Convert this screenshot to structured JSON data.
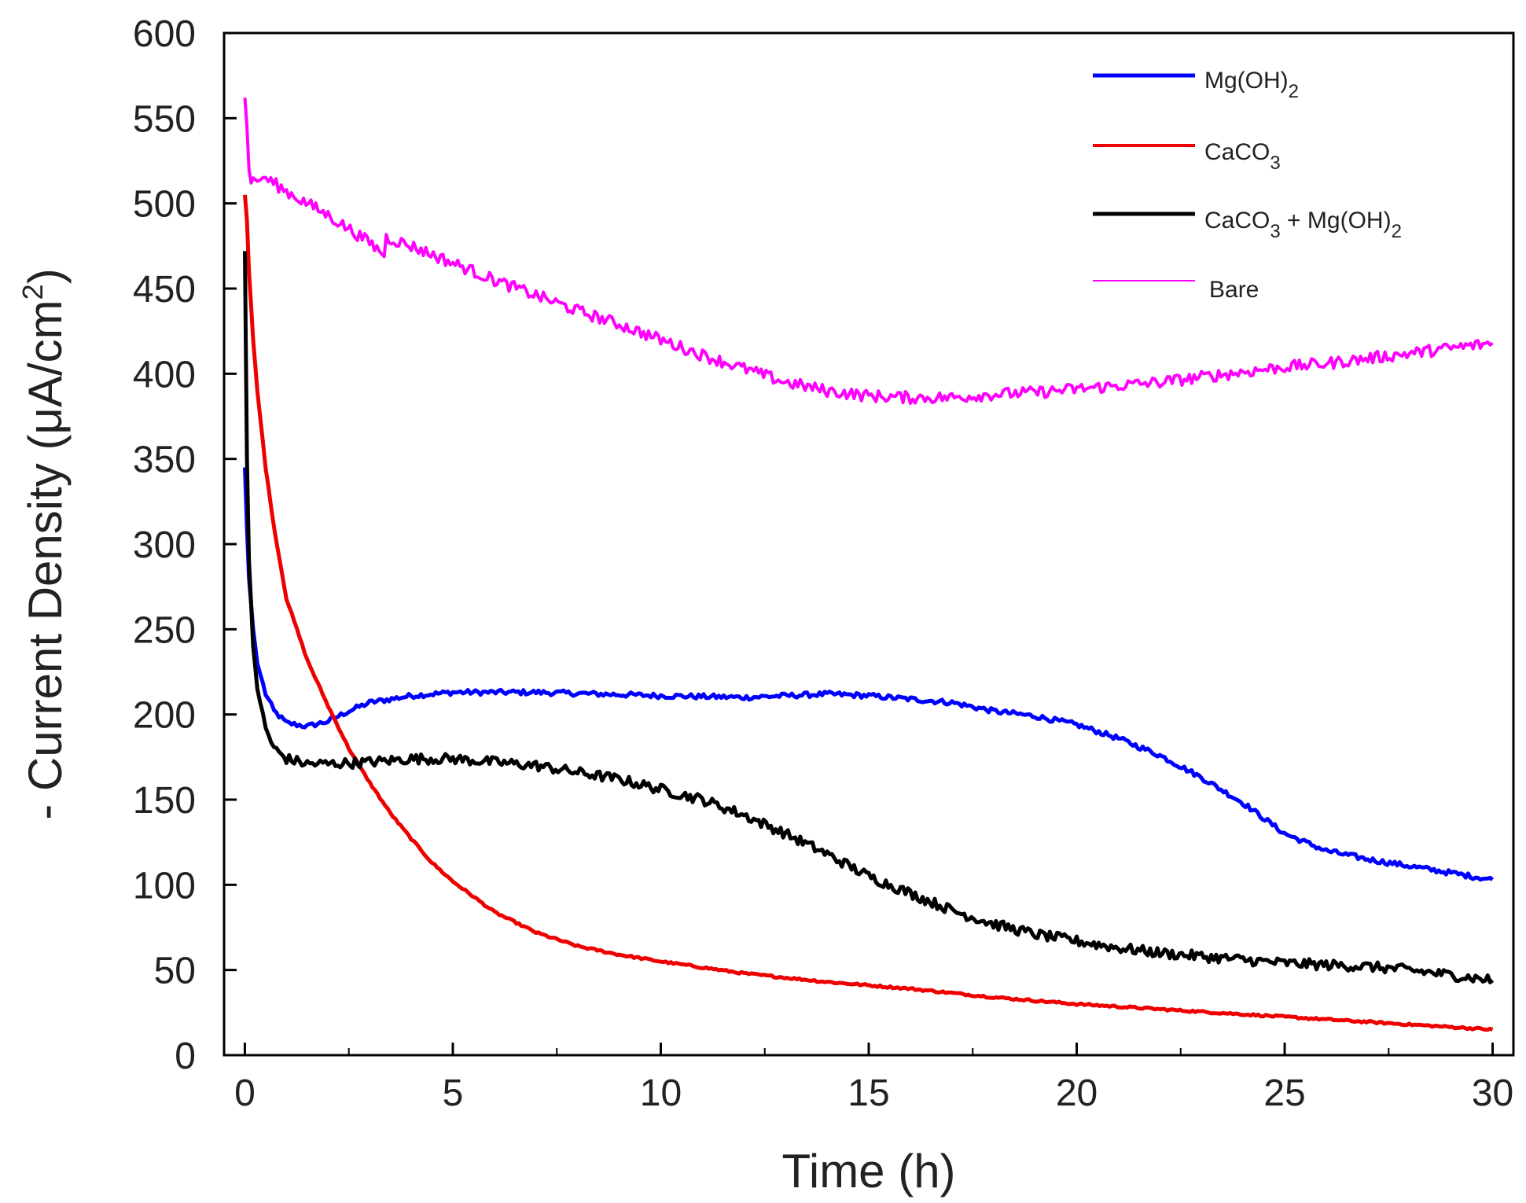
{
  "chart_data": {
    "type": "line",
    "title": "",
    "xlabel": "Time (h)",
    "ylabel_main": "- Current Density (μA/cm",
    "ylabel_sup": "2",
    "ylabel_close": ")",
    "xlim": [
      -0.5,
      30.5
    ],
    "ylim": [
      0,
      600
    ],
    "xticks": [
      0,
      5,
      10,
      15,
      20,
      25,
      30
    ],
    "yticks": [
      0,
      50,
      100,
      150,
      200,
      250,
      300,
      350,
      400,
      450,
      500,
      550,
      600
    ],
    "grid": false,
    "legend_position": "top-right",
    "series": [
      {
        "name": "Mg(OH)",
        "subscript": "2",
        "color": "#0000ff",
        "noise": 1.5,
        "x": [
          0,
          0.05,
          0.1,
          0.2,
          0.3,
          0.5,
          0.7,
          1.0,
          1.5,
          2.0,
          2.5,
          3.0,
          4.0,
          5.0,
          7.0,
          10.0,
          12.0,
          14.0,
          15.0,
          16.0,
          17.0,
          18.0,
          19.0,
          20.0,
          21.0,
          22.0,
          23.0,
          24.0,
          25.0,
          26.0,
          27.0,
          28.0,
          29.0,
          30.0
        ],
        "y": [
          345,
          310,
          280,
          250,
          230,
          212,
          202,
          195,
          193,
          196,
          202,
          207,
          211,
          213,
          213,
          211,
          210,
          212,
          211,
          209,
          207,
          202,
          199,
          194,
          186,
          176,
          163,
          148,
          130,
          120,
          115,
          111,
          107,
          103
        ]
      },
      {
        "name": "CaCO",
        "subscript": "3",
        "color": "#ee0000",
        "noise": 0.6,
        "x": [
          0,
          0.05,
          0.1,
          0.2,
          0.3,
          0.5,
          0.7,
          1.0,
          1.5,
          2.0,
          2.5,
          3.0,
          3.5,
          4.0,
          4.5,
          5.0,
          6.0,
          7.0,
          8.0,
          9.0,
          10.0,
          12.0,
          14.0,
          16.0,
          18.0,
          20.0,
          22.0,
          24.0,
          26.0,
          28.0,
          30.0
        ],
        "y": [
          505,
          490,
          460,
          420,
          390,
          345,
          310,
          268,
          232,
          205,
          180,
          160,
          142,
          127,
          113,
          102,
          84,
          72,
          64,
          59,
          55,
          48,
          43,
          39,
          34,
          30,
          27,
          24,
          21,
          18,
          15
        ]
      },
      {
        "name": "CaCO",
        "subscript": "3",
        "name_suffix": " + Mg(OH)",
        "subscript2": "2",
        "color": "#000000",
        "noise": 3.0,
        "x": [
          0,
          0.05,
          0.1,
          0.2,
          0.3,
          0.5,
          0.7,
          1.0,
          1.5,
          2.0,
          3.0,
          4.0,
          5.0,
          6.0,
          7.0,
          8.0,
          9.0,
          10.0,
          11.0,
          12.0,
          13.0,
          14.0,
          15.0,
          16.0,
          17.0,
          18.0,
          19.0,
          20.0,
          21.0,
          22.0,
          23.0,
          24.0,
          25.0,
          26.0,
          27.0,
          28.0,
          29.0,
          30.0
        ],
        "y": [
          472,
          350,
          290,
          240,
          215,
          192,
          180,
          174,
          171,
          171,
          172,
          174,
          174,
          172,
          170,
          166,
          162,
          156,
          150,
          141,
          130,
          118,
          105,
          95,
          85,
          77,
          71,
          67,
          63,
          60,
          58,
          56,
          54,
          53,
          52,
          50,
          47,
          44
        ]
      },
      {
        "name": "Bare",
        "subscript": "",
        "color": "#ff00ff",
        "noise": 3.5,
        "x": [
          0,
          0.05,
          0.1,
          0.15,
          0.2,
          0.3,
          0.5,
          1.0,
          2.0,
          3.0,
          3.35,
          3.4,
          4.0,
          5.0,
          6.0,
          7.0,
          8.0,
          9.0,
          10.0,
          11.0,
          12.0,
          13.0,
          14.0,
          15.0,
          16.0,
          17.0,
          18.0,
          19.0,
          20.0,
          21.0,
          22.0,
          23.0,
          24.0,
          25.0,
          26.0,
          27.0,
          28.0,
          29.0,
          30.0
        ],
        "y": [
          562,
          545,
          520,
          512,
          515,
          513,
          515,
          507,
          493,
          477,
          470,
          480,
          475,
          465,
          455,
          446,
          437,
          429,
          420,
          411,
          403,
          395,
          390,
          387,
          386,
          386,
          388,
          389,
          391,
          393,
          395,
          398,
          401,
          404,
          406,
          409,
          412,
          415,
          418
        ]
      }
    ]
  }
}
